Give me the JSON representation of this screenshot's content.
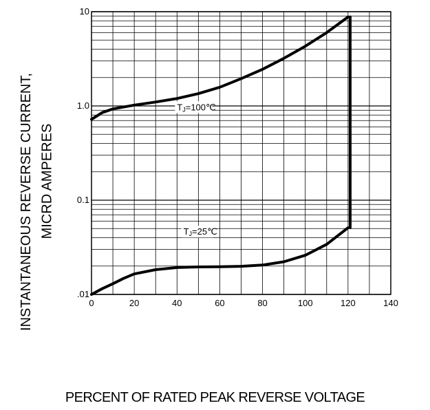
{
  "chart_data": {
    "type": "line",
    "xlabel": "PERCENT OF RATED PEAK REVERSE VOLTAGE",
    "ylabel_line1": "INSTANTANEOUS REVERSE CURRENT,",
    "ylabel_line2": "MICRD AMPERES",
    "xlim": [
      0,
      140
    ],
    "ylim": [
      0.01,
      10
    ],
    "yscale": "log",
    "grid": true,
    "x_ticks": [
      "0",
      "20",
      "40",
      "60",
      "80",
      "100",
      "120",
      "140"
    ],
    "x_tick_values": [
      0,
      20,
      40,
      60,
      80,
      100,
      120,
      140
    ],
    "y_ticks": [
      ".01",
      "0.1",
      "1.0",
      "10"
    ],
    "y_tick_values": [
      0.01,
      0.1,
      1,
      10
    ],
    "series": [
      {
        "name": "TJ=100℃",
        "label_main": "T",
        "label_sub": "J",
        "label_rest": "=100℃",
        "label_at": [
          40,
          0.9
        ],
        "x": [
          0,
          5,
          10,
          20,
          30,
          40,
          50,
          60,
          70,
          80,
          90,
          100,
          110,
          120
        ],
        "y": [
          0.72,
          0.85,
          0.93,
          1.02,
          1.1,
          1.2,
          1.35,
          1.58,
          1.95,
          2.45,
          3.2,
          4.3,
          6.0,
          8.8
        ]
      },
      {
        "name": "TJ=25℃",
        "label_main": "T",
        "label_sub": "J",
        "label_rest": "=25℃",
        "label_at": [
          43,
          0.043
        ],
        "x": [
          0,
          5,
          10,
          15,
          20,
          30,
          40,
          50,
          60,
          70,
          80,
          90,
          100,
          110,
          120
        ],
        "y": [
          0.01,
          0.0115,
          0.013,
          0.0148,
          0.0165,
          0.0183,
          0.0193,
          0.0196,
          0.0197,
          0.0199,
          0.0205,
          0.0222,
          0.026,
          0.034,
          0.051
        ]
      }
    ],
    "connector": {
      "x": 121,
      "y_from": 0.051,
      "y_to": 8.8
    }
  }
}
